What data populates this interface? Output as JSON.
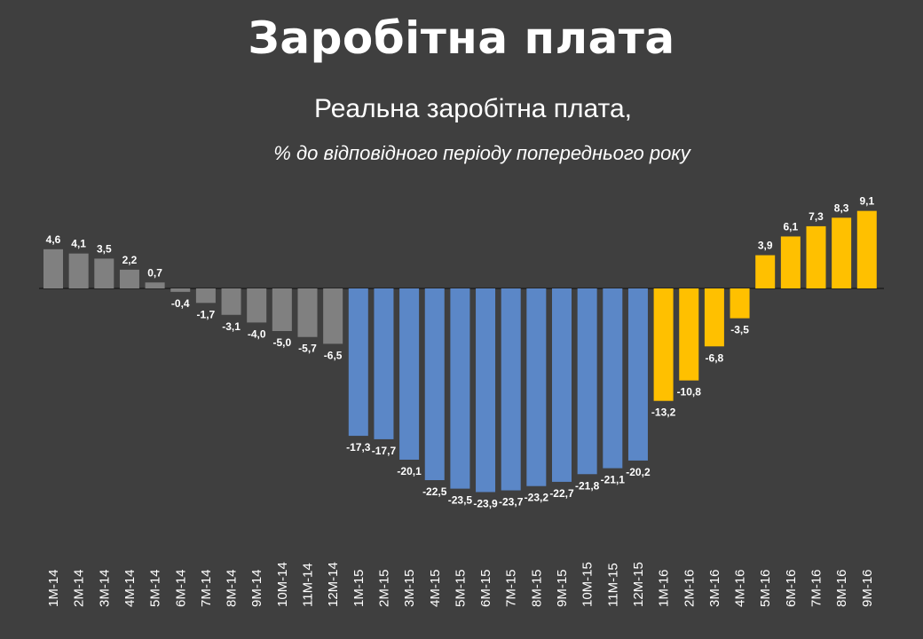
{
  "header": {
    "title": "Заробітна плата",
    "subtitle": "Реальна заробітна плата,",
    "note": "% до відповідного періоду попереднього року"
  },
  "chart_data": {
    "type": "bar",
    "categories": [
      "1M-14",
      "2M-14",
      "3M-14",
      "4M-14",
      "5M-14",
      "6M-14",
      "7M-14",
      "8M-14",
      "9M-14",
      "10M-14",
      "11M-14",
      "12M-14",
      "1M-15",
      "2M-15",
      "3M-15",
      "4M-15",
      "5M-15",
      "6M-15",
      "7M-15",
      "8M-15",
      "9M-15",
      "10M-15",
      "11M-15",
      "12M-15",
      "1M-16",
      "2M-16",
      "3M-16",
      "4M-16",
      "5M-16",
      "6M-16",
      "7M-16",
      "8M-16",
      "9M-16"
    ],
    "values": [
      4.6,
      4.1,
      3.5,
      2.2,
      0.7,
      -0.4,
      -1.7,
      -3.1,
      -4.0,
      -5.0,
      -5.7,
      -6.5,
      -17.3,
      -17.7,
      -20.1,
      -22.5,
      -23.5,
      -23.9,
      -23.7,
      -23.2,
      -22.7,
      -21.8,
      -21.1,
      -20.2,
      -13.2,
      -10.8,
      -6.8,
      -3.5,
      3.9,
      6.1,
      7.3,
      8.3,
      9.1
    ],
    "data_labels": [
      "4,6",
      "4,1",
      "3,5",
      "2,2",
      "0,7",
      "-0,4",
      "-1,7",
      "-3,1",
      "-4,0",
      "-5,0",
      "-5,7",
      "-6,5",
      "-17,3",
      "-17,7",
      "-20,1",
      "-22,5",
      "-23,5",
      "-23,9",
      "-23,7",
      "-23,2",
      "-22,7",
      "-21,8",
      "-21,1",
      "-20,2",
      "-13,2",
      "-10,8",
      "-6,8",
      "-3,5",
      "3,9",
      "6,1",
      "7,3",
      "8,3",
      "9,1"
    ],
    "colors": {
      "2014": "#808080",
      "2015": "#5b87c7",
      "2016": "#ffc000"
    },
    "ylim": [
      -25,
      10
    ],
    "grid": false,
    "legend": "none"
  }
}
